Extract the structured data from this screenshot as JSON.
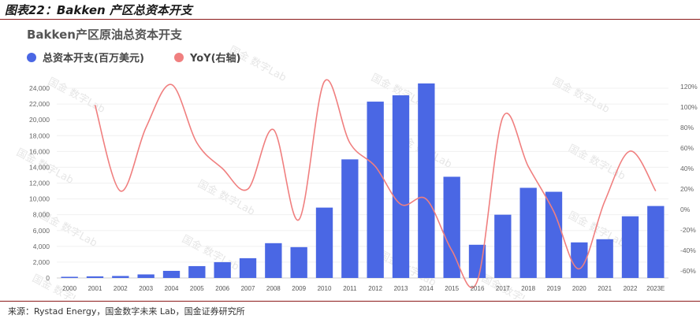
{
  "figure_title": "图表22：Bakken 产区总资本开支",
  "source": "来源：Rystad Energy，国金数字未来 Lab，国金证券研究所",
  "chart_data": {
    "type": "bar",
    "title": "Bakken产区原油总资本开支",
    "categories": [
      "2000",
      "2001",
      "2002",
      "2003",
      "2004",
      "2005",
      "2006",
      "2007",
      "2008",
      "2009",
      "2010",
      "2011",
      "2012",
      "2013",
      "2014",
      "2015",
      "2016",
      "2017",
      "2018",
      "2019",
      "2020",
      "2021",
      "2022",
      "2023E"
    ],
    "series": [
      {
        "name": "总资本开支(百万美元)",
        "type": "bar",
        "axis": "left",
        "color": "#4a67e4",
        "values": [
          150,
          200,
          250,
          450,
          900,
          1500,
          2000,
          2500,
          4400,
          3900,
          8900,
          15000,
          22300,
          23100,
          24600,
          12800,
          4200,
          8000,
          11400,
          10900,
          4500,
          4900,
          7800,
          9100
        ]
      },
      {
        "name": "YoY(右轴)",
        "type": "line",
        "axis": "right",
        "color": "#f07f7f",
        "values": [
          null,
          102,
          18,
          80,
          122,
          65,
          40,
          20,
          78,
          -10,
          125,
          65,
          42,
          5,
          10,
          -40,
          -70,
          90,
          42,
          -2,
          -58,
          8,
          57,
          18
        ]
      }
    ],
    "y_left": {
      "ticks": [
        "0",
        "2,000",
        "4,000",
        "6,000",
        "8,000",
        "10,000",
        "12,000",
        "14,000",
        "16,000",
        "18,000",
        "20,000",
        "22,000",
        "24,000"
      ],
      "min": 0,
      "max": 24000
    },
    "y_right": {
      "ticks": [
        "-60%",
        "-40%",
        "-20%",
        "0%",
        "20%",
        "40%",
        "60%",
        "80%",
        "100%",
        "120%"
      ],
      "min": -60,
      "max": 120
    },
    "legend_position": "top-left",
    "watermark": "国金 数字Lab"
  }
}
